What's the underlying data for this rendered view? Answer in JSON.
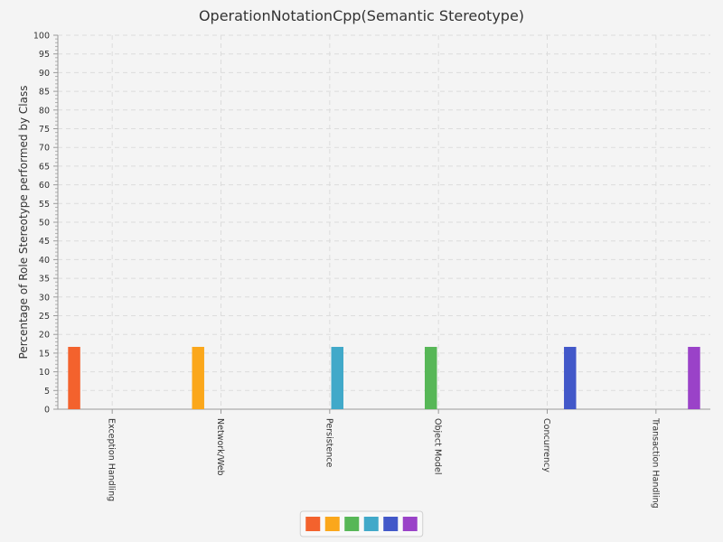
{
  "chart_data": {
    "type": "bar",
    "title": "OperationNotationCpp(Semantic Stereotype)",
    "xlabel": "",
    "ylabel": "Percentage of Role Stereotype performed by Class",
    "categories": [
      "Exception Handling",
      "Network/Web",
      "Persistence",
      "Object Model",
      "Concurrency",
      "Transaction Handling"
    ],
    "series": [
      {
        "values": [
          16.67,
          0,
          0,
          0,
          0,
          0
        ],
        "color": "#f3622d"
      },
      {
        "values": [
          0,
          16.67,
          0,
          0,
          0,
          0
        ],
        "color": "#fba71b"
      },
      {
        "values": [
          0,
          0,
          0,
          16.67,
          0,
          0
        ],
        "color": "#57b757"
      },
      {
        "values": [
          0,
          0,
          16.67,
          0,
          0,
          0
        ],
        "color": "#41a9c9"
      },
      {
        "values": [
          0,
          0,
          0,
          0,
          16.67,
          0
        ],
        "color": "#4258c9"
      },
      {
        "values": [
          0,
          0,
          0,
          0,
          0,
          16.67
        ],
        "color": "#9a42c8"
      }
    ],
    "ylim": [
      0,
      100
    ],
    "ytick_step": 5,
    "grid": true,
    "legend_position": "bottom-center"
  }
}
